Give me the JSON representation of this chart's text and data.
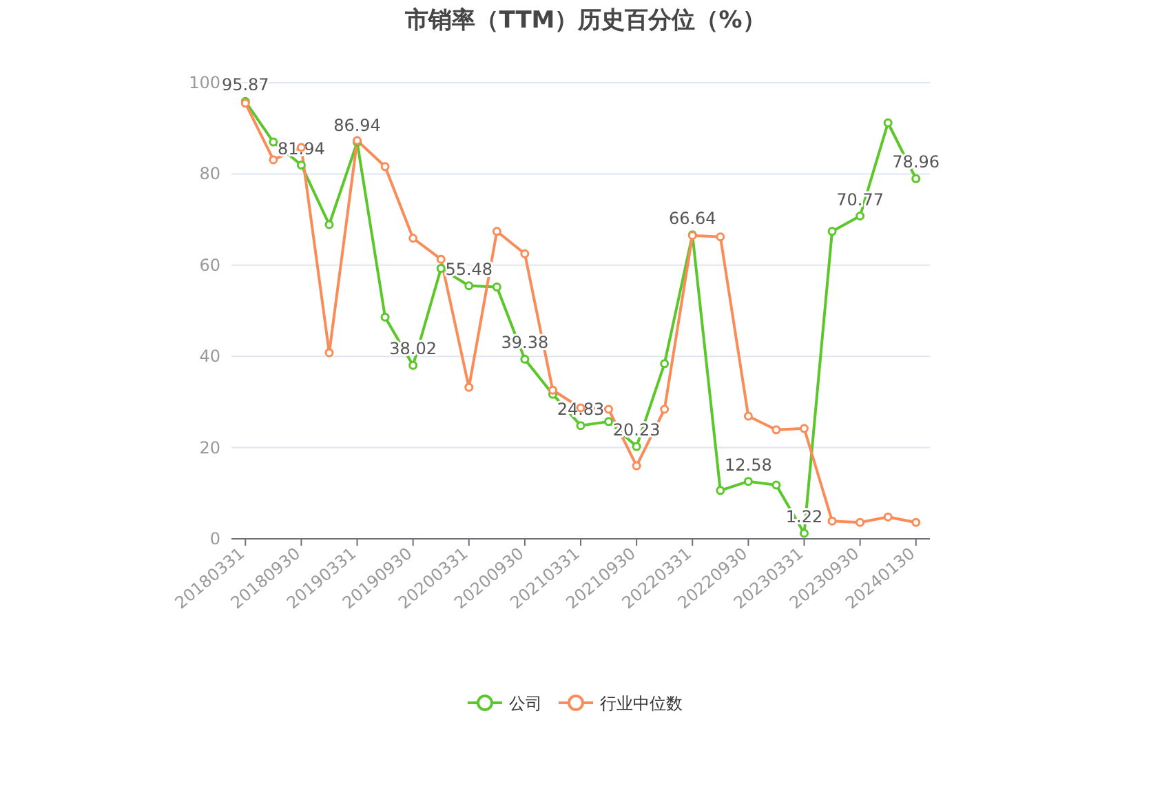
{
  "chart_data": {
    "type": "line",
    "title": "市销率（TTM）历史百分位（%）",
    "categories": [
      "20180331",
      null,
      "20180930",
      null,
      "20190331",
      null,
      "20190930",
      null,
      "20200331",
      null,
      "20200930",
      null,
      "20210331",
      null,
      "20210930",
      null,
      "20220331",
      null,
      "20220930",
      null,
      "20230331",
      null,
      "20230930",
      null,
      "20240130"
    ],
    "series": [
      {
        "name": "公司",
        "color": "#5cc72a",
        "values": [
          95.87,
          87.0,
          81.94,
          68.9,
          86.94,
          48.6,
          38.02,
          59.3,
          55.48,
          55.2,
          39.38,
          31.7,
          24.83,
          25.7,
          20.23,
          38.4,
          66.64,
          10.6,
          12.58,
          11.8,
          1.22,
          67.4,
          70.77,
          91.2,
          78.96
        ],
        "value_labels": [
          "95.87",
          null,
          "81.94",
          null,
          "86.94",
          null,
          "38.02",
          null,
          "55.48",
          null,
          "39.38",
          null,
          "24.83",
          null,
          "20.23",
          null,
          "66.64",
          null,
          "12.58",
          null,
          "1.22",
          null,
          "70.77",
          null,
          "78.96"
        ]
      },
      {
        "name": "行业中位数",
        "color": "#fa8c5a",
        "values": [
          95.5,
          83.1,
          85.8,
          40.8,
          87.3,
          81.6,
          65.9,
          61.3,
          33.2,
          67.4,
          62.5,
          32.6,
          28.7,
          28.4,
          16.0,
          28.4,
          66.5,
          66.2,
          26.9,
          23.9,
          24.2,
          3.9,
          3.6,
          4.8,
          3.6
        ]
      }
    ],
    "ylim": [
      0,
      100
    ],
    "yticks": [
      0,
      20,
      40,
      60,
      80,
      100
    ],
    "grid": "y",
    "legend": "bottom",
    "marker": "circle",
    "line_style": "solid"
  }
}
